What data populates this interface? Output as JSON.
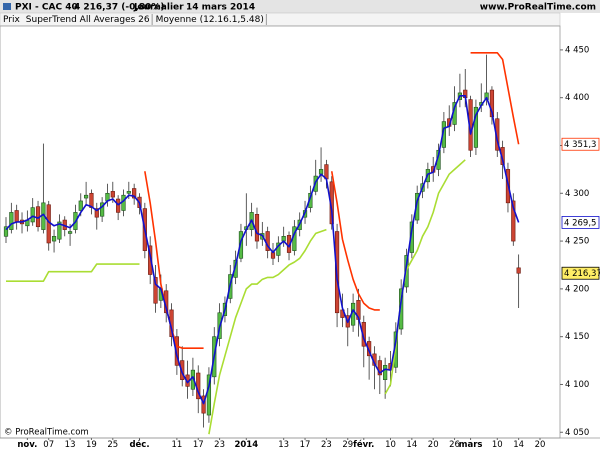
{
  "chart_data": {
    "type": "candlestick",
    "title": "PXI - CAC 40",
    "subtitle": "4 216,37 (-0,80%)",
    "period": "Journalier",
    "date": "14 mars 2014",
    "source": "www.ProRealTime.com",
    "copyright": "© ProRealTime.com",
    "price_label": "Prix",
    "up_color": "#55bb44",
    "down_color": "#cc4433",
    "categories": [
      null,
      null,
      null,
      null,
      "nov.",
      null,
      null,
      null,
      "07",
      null,
      null,
      null,
      "13",
      null,
      null,
      null,
      "19",
      null,
      null,
      null,
      "25",
      null,
      null,
      null,
      null,
      "déc.",
      null,
      null,
      null,
      null,
      null,
      null,
      "11",
      null,
      null,
      null,
      "17",
      null,
      null,
      null,
      "23",
      null,
      null,
      null,
      null,
      "2014",
      null,
      null,
      null,
      null,
      null,
      null,
      "13",
      null,
      null,
      null,
      "17",
      null,
      null,
      null,
      "23",
      null,
      null,
      null,
      "29",
      null,
      null,
      "févr.",
      null,
      null,
      null,
      null,
      "10",
      null,
      null,
      null,
      "14",
      null,
      null,
      null,
      "20",
      null,
      null,
      null,
      "26",
      null,
      null,
      "mars",
      null,
      null,
      null,
      null,
      "10",
      null,
      null,
      null,
      "14",
      null,
      null,
      null,
      "20"
    ],
    "open": [
      4255,
      4262,
      4282,
      4272,
      4266,
      4270,
      4286,
      4262,
      4288,
      4250,
      4252,
      4272,
      4258,
      4262,
      4282,
      4295,
      4300,
      4284,
      4276,
      4292,
      4302,
      4294,
      4282,
      4300,
      4305,
      4296,
      4284,
      4245,
      4212,
      4188,
      4198,
      4178,
      4150,
      4125,
      4110,
      4095,
      4112,
      4088,
      4068,
      4108,
      4148,
      4172,
      4190,
      4212,
      4232,
      4262,
      4262,
      4278,
      4252,
      4260,
      4238,
      4235,
      4250,
      4256,
      4240,
      4262,
      4275,
      4285,
      4302,
      4320,
      4330,
      4312,
      4260,
      4178,
      4172,
      4162,
      4188,
      4165,
      4145,
      4132,
      4125,
      4105,
      4122,
      4118,
      4158,
      4202,
      4238,
      4272,
      4302,
      4312,
      4328,
      4325,
      4348,
      4378,
      4372,
      4398,
      4408,
      4398,
      4348,
      4392,
      4398,
      4408,
      4378,
      4348,
      4325,
      4292,
      4222,
      null,
      null,
      null,
      null
    ],
    "high": [
      4275,
      4290,
      4288,
      4280,
      4282,
      4295,
      4292,
      4352,
      4292,
      4262,
      4278,
      4276,
      4268,
      4288,
      4300,
      4312,
      4304,
      4290,
      4296,
      4310,
      4312,
      4298,
      4304,
      4312,
      4310,
      4300,
      4290,
      4255,
      4225,
      4215,
      4205,
      4185,
      4158,
      4140,
      4125,
      4128,
      4120,
      4095,
      4118,
      4160,
      4185,
      4192,
      4225,
      4240,
      4268,
      4300,
      4290,
      4285,
      4270,
      4265,
      4248,
      4255,
      4265,
      4260,
      4272,
      4280,
      4292,
      4308,
      4335,
      4348,
      4335,
      4318,
      4268,
      4195,
      4180,
      4195,
      4200,
      4172,
      4150,
      4140,
      4130,
      4128,
      4135,
      4165,
      4210,
      4242,
      4278,
      4308,
      4318,
      4332,
      4338,
      4352,
      4385,
      4392,
      4412,
      4425,
      4430,
      4402,
      4398,
      4415,
      4445,
      4412,
      4385,
      4355,
      4332,
      4300,
      4236,
      null,
      null,
      null,
      null
    ],
    "low": [
      4248,
      4258,
      4262,
      4258,
      4260,
      4266,
      4260,
      4258,
      4240,
      4238,
      4248,
      4255,
      4245,
      4258,
      4276,
      4288,
      4278,
      4262,
      4270,
      4286,
      4290,
      4272,
      4276,
      4294,
      4288,
      4278,
      4232,
      4205,
      4175,
      4180,
      4165,
      4140,
      4110,
      4098,
      4085,
      4088,
      4070,
      4055,
      4060,
      4100,
      4140,
      4165,
      4185,
      4205,
      4228,
      4245,
      4255,
      4242,
      4245,
      4232,
      4225,
      4228,
      4244,
      4230,
      4235,
      4255,
      4268,
      4280,
      4298,
      4312,
      4305,
      4262,
      4160,
      4160,
      4140,
      4155,
      4150,
      4118,
      4105,
      4095,
      4090,
      4085,
      4098,
      4112,
      4152,
      4196,
      4232,
      4268,
      4295,
      4305,
      4312,
      4318,
      4342,
      4360,
      4365,
      4390,
      4390,
      4338,
      4340,
      4385,
      4392,
      4372,
      4338,
      4315,
      4280,
      4245,
      4180,
      null,
      null,
      null,
      null
    ],
    "close": [
      4265,
      4280,
      4270,
      4268,
      4272,
      4285,
      4265,
      4290,
      4248,
      4255,
      4270,
      4262,
      4260,
      4280,
      4292,
      4298,
      4285,
      4275,
      4290,
      4300,
      4296,
      4280,
      4298,
      4302,
      4295,
      4285,
      4240,
      4215,
      4185,
      4200,
      4175,
      4150,
      4120,
      4105,
      4098,
      4115,
      4085,
      4070,
      4110,
      4150,
      4175,
      4185,
      4215,
      4230,
      4260,
      4265,
      4280,
      4250,
      4258,
      4240,
      4232,
      4248,
      4255,
      4238,
      4265,
      4272,
      4282,
      4300,
      4318,
      4325,
      4315,
      4268,
      4175,
      4170,
      4160,
      4185,
      4168,
      4140,
      4130,
      4120,
      4110,
      4120,
      4115,
      4155,
      4200,
      4235,
      4270,
      4300,
      4310,
      4325,
      4322,
      4345,
      4375,
      4370,
      4395,
      4405,
      4400,
      4345,
      4390,
      4395,
      4405,
      4380,
      4345,
      4330,
      4290,
      4250,
      4216.37,
      null,
      null,
      null,
      null
    ],
    "series": [
      {
        "name": "SuperTrend All Averages 26",
        "color": "#ff3300",
        "up_color": "#aadd33",
        "values": [
          4208,
          4208,
          4208,
          4208,
          4208,
          4208,
          4208,
          4208,
          4218,
          4218,
          4218,
          4218,
          4218,
          4218,
          4218,
          4218,
          4218,
          4226,
          4226,
          4226,
          4226,
          4226,
          4226,
          4226,
          4226,
          4226,
          4323,
          4290,
          4250,
          4205,
          4180,
          4158,
          4140,
          4138,
          4138,
          4138,
          4138,
          4138,
          4048,
          4080,
          4110,
          4130,
          4150,
          4170,
          4185,
          4200,
          4205,
          4205,
          4210,
          4212,
          4212,
          4215,
          4220,
          4225,
          4228,
          4232,
          4240,
          4250,
          4258,
          4260,
          4262,
          4323,
          4290,
          4252,
          4230,
          4210,
          4195,
          4185,
          4180,
          4178,
          4178,
          4090,
          4100,
          4140,
          4190,
          4220,
          4230,
          4240,
          4255,
          4265,
          4280,
          4300,
          4310,
          4320,
          4325,
          4330,
          4335,
          4447,
          4447,
          4447,
          4447,
          4447,
          4447,
          4440,
          4410,
          4380,
          4351.3,
          null,
          null,
          null,
          null
        ]
      },
      {
        "name": "Moyenne (12.16.1,5.48)",
        "color": "#1111cc",
        "values": [
          4262,
          4268,
          4270,
          4270,
          4272,
          4276,
          4274,
          4278,
          4270,
          4266,
          4268,
          4266,
          4264,
          4270,
          4280,
          4288,
          4286,
          4282,
          4286,
          4292,
          4294,
          4288,
          4292,
          4298,
          4297,
          4290,
          4262,
          4235,
          4205,
          4200,
          4180,
          4158,
          4130,
          4112,
          4102,
          4108,
          4092,
          4080,
          4098,
          4130,
          4160,
          4178,
          4205,
          4225,
          4250,
          4262,
          4272,
          4258,
          4256,
          4245,
          4238,
          4245,
          4250,
          4244,
          4258,
          4268,
          4280,
          4296,
          4312,
          4320,
          4315,
          4282,
          4210,
          4180,
          4165,
          4178,
          4170,
          4148,
          4135,
          4122,
          4112,
          4116,
          4115,
          4145,
          4188,
          4225,
          4262,
          4292,
          4306,
          4320,
          4322,
          4340,
          4368,
          4370,
          4390,
          4402,
          4402,
          4362,
          4382,
          4392,
          4400,
          4385,
          4355,
          4335,
          4310,
          4285,
          4269.5,
          null,
          null,
          null,
          null
        ]
      }
    ],
    "ylim": [
      4044,
      4475
    ],
    "yticks": [
      {
        "value": 4050,
        "label": "4 050"
      },
      {
        "value": 4100,
        "label": "4 100"
      },
      {
        "value": 4150,
        "label": "4 150"
      },
      {
        "value": 4200,
        "label": "4 200"
      },
      {
        "value": 4250,
        "label": "4 250"
      },
      {
        "value": 4300,
        "label": "4 300"
      },
      {
        "value": 4350,
        "label": "4 350"
      },
      {
        "value": 4400,
        "label": "4 400"
      },
      {
        "value": 4450,
        "label": "4 450"
      }
    ],
    "annotations": [
      {
        "value": 4351.3,
        "label": "4 351,3",
        "color": "#ff3300",
        "background": "#ffffff"
      },
      {
        "value": 4269.5,
        "label": "4 269,5",
        "color": "#1111cc",
        "background": "#ffffff"
      },
      {
        "value": 4216.37,
        "label": "4 216,37",
        "color": "#000000",
        "background": "#ffee66"
      }
    ]
  }
}
